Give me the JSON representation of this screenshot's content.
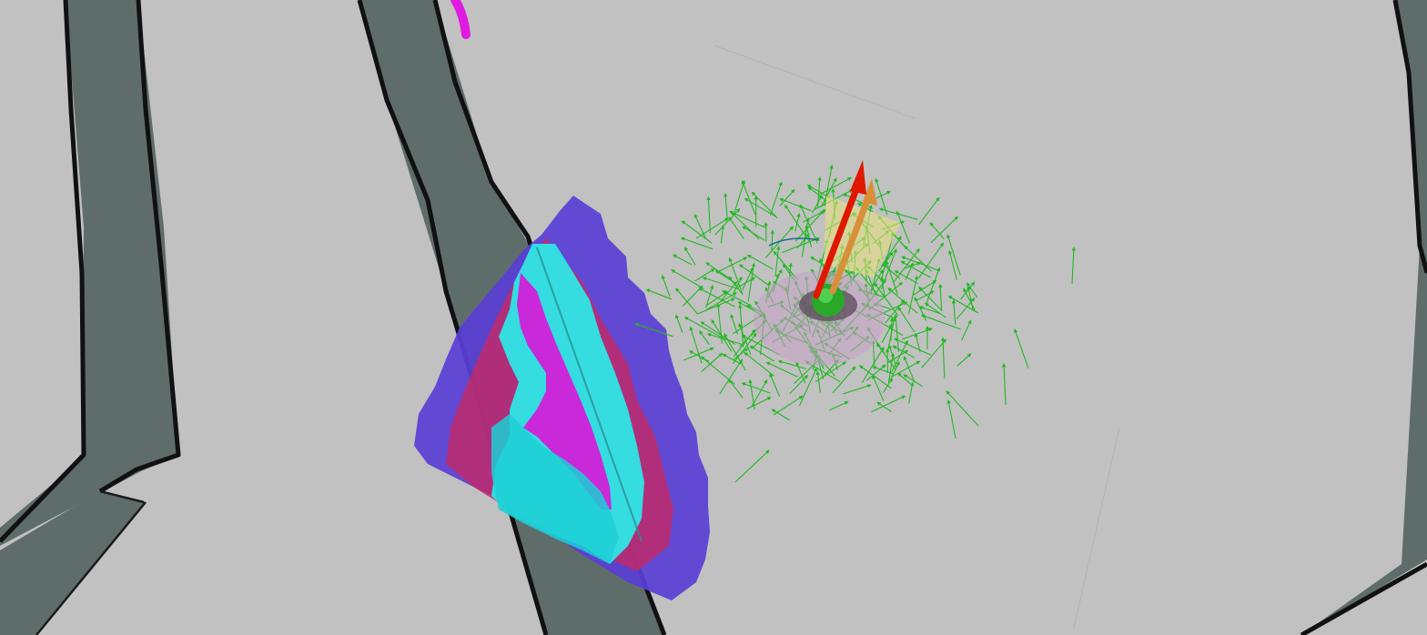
{
  "viewer": {
    "background_color": "#c1c1c1",
    "wall_color": "#5f6d6a",
    "wall_edge_color": "#111111"
  },
  "costmap": {
    "colors": [
      "#5a3fd6",
      "#c02a6a",
      "#2ee6e6",
      "#d21fd8",
      "#1ccfd6"
    ]
  },
  "robot": {
    "base_color": "#29a829",
    "footprint_color": "#c7a0c7",
    "pose_arrow_color": "#e01800",
    "goal_arrow_color": "#d98f3a",
    "highlight_color": "#e9e27a"
  },
  "particles": {
    "color": "#23b823"
  },
  "path": {
    "color": "#e01be0"
  }
}
